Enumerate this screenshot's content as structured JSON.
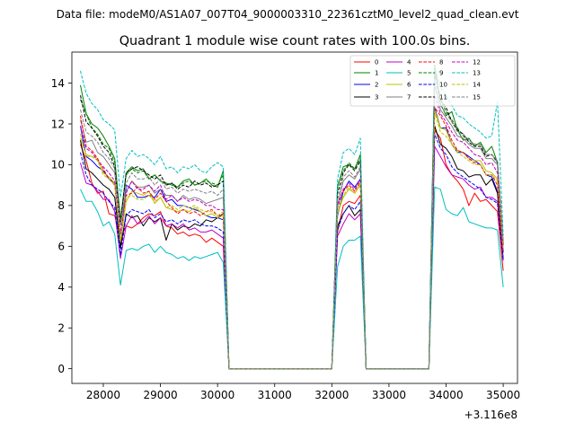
{
  "figure": {
    "suptitle": "Data file: modeM0/AS1A07_007T04_9000003310_22361cztM0_level2_quad_clean.evt"
  },
  "chart_data": {
    "type": "line",
    "title": "Quadrant 1 module wise count rates with 100.0s bins.",
    "xlabel": "",
    "ylabel": "",
    "x_offset_label": "+3.116e8",
    "xlim": [
      27450,
      35250
    ],
    "ylim": [
      -0.72,
      15.52
    ],
    "x_ticks": [
      28000,
      29000,
      30000,
      31000,
      32000,
      33000,
      34000,
      35000
    ],
    "y_ticks": [
      0,
      2,
      4,
      6,
      8,
      10,
      12,
      14
    ],
    "legend_position": "top-right",
    "segments": [
      {
        "x_start": 27600,
        "x_end": 30100,
        "step": 100
      },
      {
        "x_start": 32100,
        "x_end": 32500,
        "step": 100
      },
      {
        "x_start": 33800,
        "x_end": 35000,
        "step": 100
      }
    ],
    "gap_values": {
      "x": [
        30200,
        30300,
        32000,
        32600,
        32700,
        33700
      ],
      "value": 0
    },
    "series": [
      {
        "name": "0",
        "color": "#ff0000",
        "dash": "solid",
        "seg": [
          [
            11.0,
            10.2,
            9.1,
            8.6,
            8.7,
            7.6,
            7.5,
            6.4,
            7.0,
            6.9,
            7.1,
            7.4,
            7.6,
            7.5,
            7.7,
            7.0,
            6.9,
            6.6,
            6.7,
            6.5,
            6.6,
            6.5,
            6.2,
            6.4,
            6.2,
            6.0
          ],
          [
            6.7,
            8.0,
            8.2,
            8.1,
            8.5
          ],
          [
            11.7,
            11.3,
            10.0,
            9.5,
            9.2,
            8.8,
            8.0,
            8.6,
            8.2,
            8.3,
            8.0,
            7.7,
            4.8
          ]
        ]
      },
      {
        "name": "1",
        "color": "#008000",
        "dash": "solid",
        "seg": [
          [
            13.9,
            12.5,
            12.0,
            11.8,
            11.4,
            10.9,
            10.3,
            7.3,
            9.6,
            9.9,
            9.7,
            9.8,
            9.3,
            9.5,
            9.2,
            9.1,
            9.0,
            8.9,
            9.2,
            9.3,
            9.0,
            9.1,
            9.3,
            9.0,
            8.9,
            9.7
          ],
          [
            8.9,
            9.9,
            10.0,
            9.8,
            10.5
          ],
          [
            14.9,
            13.0,
            12.4,
            12.6,
            11.7,
            11.2,
            11.3,
            10.9,
            11.1,
            10.6,
            10.9,
            10.1,
            5.7
          ]
        ]
      },
      {
        "name": "2",
        "color": "#0000ff",
        "dash": "solid",
        "seg": [
          [
            11.9,
            10.4,
            10.2,
            9.9,
            9.7,
            9.3,
            9.1,
            6.0,
            9.0,
            8.8,
            8.4,
            8.4,
            8.5,
            8.4,
            8.8,
            8.2,
            8.3,
            8.0,
            8.0,
            7.9,
            7.8,
            7.7,
            7.5,
            7.4,
            7.4,
            7.3
          ],
          [
            7.5,
            8.7,
            9.2,
            8.9,
            9.3
          ],
          [
            12.8,
            11.8,
            11.8,
            11.0,
            10.6,
            10.6,
            10.4,
            10.2,
            10.0,
            9.5,
            9.4,
            8.7,
            5.7
          ]
        ]
      },
      {
        "name": "3",
        "color": "#000000",
        "dash": "solid",
        "seg": [
          [
            11.2,
            9.8,
            9.6,
            9.3,
            9.0,
            8.8,
            8.4,
            5.9,
            7.6,
            7.4,
            7.5,
            7.0,
            7.4,
            7.2,
            7.4,
            6.3,
            7.1,
            6.8,
            7.0,
            6.9,
            7.1,
            7.0,
            7.3,
            7.2,
            7.4,
            7.6
          ],
          [
            7.0,
            7.6,
            8.0,
            7.5,
            7.8
          ],
          [
            11.9,
            11.0,
            10.8,
            10.4,
            9.8,
            9.7,
            9.4,
            9.5,
            9.5,
            9.0,
            9.3,
            8.6,
            5.4
          ]
        ]
      },
      {
        "name": "4",
        "color": "#bf00bf",
        "dash": "solid",
        "seg": [
          [
            10.1,
            9.1,
            9.0,
            8.7,
            8.3,
            8.3,
            7.7,
            5.4,
            7.0,
            7.5,
            7.1,
            7.2,
            7.5,
            7.1,
            7.4,
            7.0,
            7.1,
            6.9,
            7.1,
            6.8,
            6.9,
            6.7,
            6.7,
            6.8,
            6.6,
            6.4
          ],
          [
            6.5,
            7.1,
            7.6,
            7.3,
            7.6
          ],
          [
            10.9,
            10.4,
            9.9,
            9.5,
            9.4,
            9.3,
            9.0,
            8.8,
            8.9,
            8.4,
            8.4,
            8.2,
            5.3
          ]
        ]
      },
      {
        "name": "5",
        "color": "#00bfbf",
        "dash": "solid",
        "seg": [
          [
            8.8,
            8.2,
            8.2,
            7.7,
            7.0,
            7.2,
            6.6,
            4.1,
            5.8,
            5.9,
            5.8,
            6.0,
            6.1,
            5.7,
            6.0,
            5.7,
            5.6,
            5.4,
            5.5,
            5.3,
            5.5,
            5.4,
            5.5,
            5.6,
            5.7,
            5.2
          ],
          [
            5.0,
            6.0,
            6.3,
            6.3,
            6.5
          ],
          [
            8.9,
            8.8,
            7.8,
            7.6,
            7.5,
            7.9,
            7.2,
            7.1,
            7.0,
            6.9,
            6.9,
            6.8,
            4.0
          ]
        ]
      },
      {
        "name": "6",
        "color": "#bfbf00",
        "dash": "solid",
        "seg": [
          [
            11.3,
            10.5,
            10.4,
            10.3,
            9.6,
            9.4,
            9.1,
            6.2,
            8.2,
            8.7,
            8.6,
            8.5,
            8.7,
            8.1,
            8.4,
            7.9,
            7.8,
            7.7,
            7.8,
            7.7,
            7.9,
            7.7,
            7.5,
            7.6,
            7.4,
            7.5
          ],
          [
            7.6,
            8.4,
            8.8,
            8.6,
            9.0
          ],
          [
            12.7,
            11.8,
            11.7,
            11.0,
            10.7,
            10.6,
            10.3,
            10.2,
            10.2,
            9.7,
            9.6,
            9.3,
            5.8
          ]
        ]
      },
      {
        "name": "7",
        "color": "#808080",
        "dash": "solid",
        "seg": [
          [
            12.2,
            11.1,
            11.2,
            10.6,
            10.4,
            10.0,
            9.6,
            7.1,
            8.7,
            9.2,
            8.9,
            8.9,
            9.0,
            8.6,
            8.8,
            8.5,
            8.5,
            8.2,
            8.5,
            8.3,
            8.4,
            8.3,
            8.1,
            8.2,
            8.3,
            8.4
          ],
          [
            8.0,
            9.2,
            9.5,
            9.3,
            9.8
          ],
          [
            13.9,
            12.7,
            12.3,
            11.9,
            11.4,
            11.3,
            11.0,
            10.8,
            10.8,
            10.3,
            10.3,
            10.0,
            6.2
          ]
        ]
      },
      {
        "name": "8",
        "color": "#ff0000",
        "dash": "dashed",
        "seg": [
          [
            12.4,
            10.9,
            10.7,
            10.3,
            9.8,
            9.3,
            9.0,
            6.6,
            8.5,
            8.6,
            8.9,
            8.6,
            8.7,
            8.3,
            8.6,
            8.2,
            7.9,
            7.6,
            7.8,
            7.6,
            7.7,
            7.5,
            7.7,
            7.8,
            7.5,
            7.6
          ],
          [
            8.1,
            8.7,
            9.0,
            8.7,
            9.2
          ],
          [
            12.8,
            12.4,
            11.9,
            11.2,
            10.7,
            10.6,
            10.3,
            10.1,
            10.0,
            9.5,
            9.5,
            9.0,
            5.8
          ]
        ]
      },
      {
        "name": "9",
        "color": "#008000",
        "dash": "dashed",
        "seg": [
          [
            13.2,
            12.5,
            11.8,
            11.5,
            11.0,
            10.8,
            10.1,
            7.3,
            9.5,
            9.8,
            9.6,
            9.7,
            9.3,
            9.5,
            9.2,
            9.0,
            9.1,
            8.9,
            9.1,
            9.2,
            9.0,
            9.1,
            9.2,
            9.1,
            9.0,
            9.5
          ],
          [
            9.0,
            9.7,
            10.1,
            9.8,
            10.3
          ],
          [
            14.7,
            13.2,
            12.6,
            12.2,
            11.8,
            11.4,
            11.2,
            11.0,
            11.0,
            10.5,
            10.5,
            10.2,
            6.2
          ]
        ]
      },
      {
        "name": "10",
        "color": "#0000ff",
        "dash": "dashed",
        "seg": [
          [
            10.6,
            9.5,
            9.0,
            8.8,
            8.6,
            8.2,
            7.9,
            5.6,
            7.5,
            7.8,
            7.7,
            7.6,
            7.8,
            7.4,
            7.6,
            7.2,
            7.3,
            7.1,
            7.3,
            7.2,
            7.3,
            7.1,
            7.0,
            7.0,
            6.9,
            6.7
          ],
          [
            6.8,
            7.6,
            8.0,
            7.8,
            8.2
          ],
          [
            11.5,
            10.8,
            10.5,
            9.9,
            9.6,
            9.4,
            9.2,
            9.0,
            8.8,
            8.4,
            8.3,
            8.1,
            5.3
          ]
        ]
      },
      {
        "name": "11",
        "color": "#000000",
        "dash": "dashed",
        "seg": [
          [
            13.4,
            12.1,
            11.8,
            11.4,
            10.9,
            10.6,
            9.9,
            7.1,
            9.6,
            9.8,
            9.9,
            9.7,
            9.5,
            9.3,
            9.5,
            9.0,
            9.1,
            8.8,
            9.0,
            8.9,
            9.2,
            9.0,
            9.1,
            8.9,
            9.0,
            9.2
          ],
          [
            8.6,
            9.6,
            10.0,
            9.7,
            10.2
          ],
          [
            14.5,
            13.2,
            12.8,
            12.1,
            11.7,
            11.5,
            11.1,
            10.9,
            10.9,
            10.4,
            10.5,
            10.1,
            6.1
          ]
        ]
      },
      {
        "name": "12",
        "color": "#bf00bf",
        "dash": "dashed",
        "seg": [
          [
            11.9,
            10.8,
            10.6,
            10.2,
            9.9,
            9.6,
            9.2,
            6.6,
            8.6,
            9.2,
            8.8,
            8.8,
            9.0,
            8.7,
            9.0,
            8.3,
            8.5,
            8.2,
            8.4,
            8.2,
            8.3,
            8.2,
            8.0,
            8.0,
            7.8,
            7.8
          ],
          [
            7.9,
            8.8,
            9.1,
            8.8,
            9.3
          ],
          [
            13.4,
            12.5,
            12.1,
            11.6,
            11.2,
            11.1,
            10.8,
            10.5,
            10.4,
            10.0,
            10.1,
            9.6,
            6.0
          ]
        ]
      },
      {
        "name": "13",
        "color": "#00bfbf",
        "dash": "dashed",
        "seg": [
          [
            14.6,
            13.5,
            13.0,
            12.7,
            12.2,
            12.0,
            11.7,
            8.4,
            10.3,
            10.7,
            10.4,
            10.5,
            10.3,
            10.0,
            10.4,
            9.8,
            9.9,
            9.6,
            9.9,
            9.8,
            10.0,
            9.7,
            9.6,
            9.9,
            10.1,
            9.9
          ],
          [
            9.3,
            10.6,
            10.8,
            10.5,
            11.3
          ],
          [
            14.8,
            13.8,
            13.4,
            12.9,
            12.4,
            12.3,
            12.0,
            11.8,
            11.6,
            11.3,
            11.4,
            13.1,
            6.5
          ]
        ]
      },
      {
        "name": "14",
        "color": "#bfbf00",
        "dash": "dashed",
        "seg": [
          [
            11.5,
            10.4,
            10.4,
            10.2,
            9.5,
            9.3,
            9.0,
            6.3,
            8.4,
            8.5,
            8.3,
            8.3,
            8.5,
            8.2,
            8.4,
            7.9,
            8.0,
            7.8,
            8.0,
            7.9,
            8.0,
            7.8,
            7.7,
            7.7,
            7.5,
            7.7
          ],
          [
            7.7,
            8.5,
            8.9,
            8.6,
            9.1
          ],
          [
            12.6,
            11.6,
            11.4,
            11.0,
            10.6,
            10.4,
            10.2,
            10.0,
            10.0,
            9.5,
            9.5,
            9.2,
            5.9
          ]
        ]
      },
      {
        "name": "15",
        "color": "#808080",
        "dash": "dashed",
        "seg": [
          [
            12.7,
            11.6,
            11.4,
            11.1,
            10.6,
            10.3,
            9.8,
            7.0,
            9.1,
            9.6,
            9.3,
            9.3,
            9.4,
            9.0,
            9.3,
            8.8,
            8.9,
            8.6,
            8.8,
            8.7,
            8.8,
            8.7,
            8.6,
            8.7,
            8.5,
            8.8
          ],
          [
            8.3,
            9.4,
            9.7,
            9.4,
            9.9
          ],
          [
            14.1,
            12.9,
            12.5,
            12.1,
            11.6,
            11.5,
            11.2,
            11.0,
            11.0,
            10.5,
            10.5,
            10.2,
            6.3
          ]
        ]
      }
    ]
  }
}
